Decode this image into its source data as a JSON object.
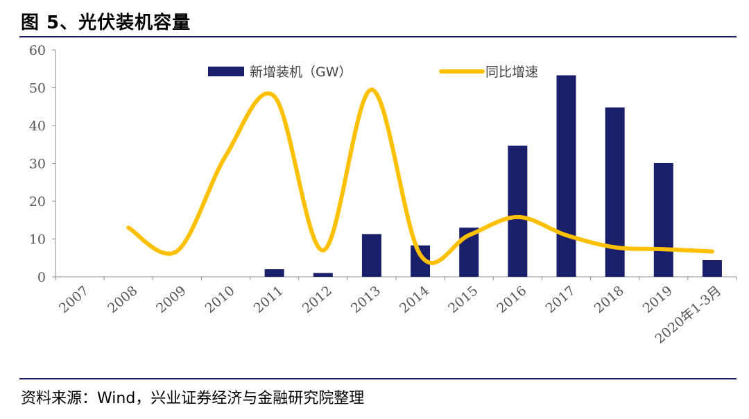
{
  "header": {
    "title": "图  5、光伏装机容量"
  },
  "footer": {
    "source": "资料来源：Wind，兴业证券经济与金融研究院整理"
  },
  "colors": {
    "bar": "#1a1f6b",
    "line": "#ffc000",
    "rule": "#1a1f6b"
  },
  "chart_data": {
    "type": "bar",
    "categories": [
      "2007",
      "2008",
      "2009",
      "2010",
      "2011",
      "2012",
      "2013",
      "2014",
      "2015",
      "2016",
      "2017",
      "2018",
      "2019",
      "2020年1-3月"
    ],
    "series": [
      {
        "name": "新增装机（GW）",
        "type": "bar",
        "values": [
          0,
          0,
          0,
          0,
          2,
          1,
          11.3,
          8.3,
          13,
          34.7,
          53.3,
          44.8,
          30.1,
          4.4
        ]
      },
      {
        "name": "同比增速",
        "type": "line",
        "values": [
          null,
          13,
          6.8,
          32,
          47.7,
          7,
          49.5,
          5.8,
          11,
          15.8,
          11,
          7.8,
          7.3,
          6.7
        ]
      }
    ],
    "ylim": [
      0,
      60
    ],
    "yticks": [
      0,
      10,
      20,
      30,
      40,
      50,
      60
    ],
    "legend_position": "top"
  }
}
